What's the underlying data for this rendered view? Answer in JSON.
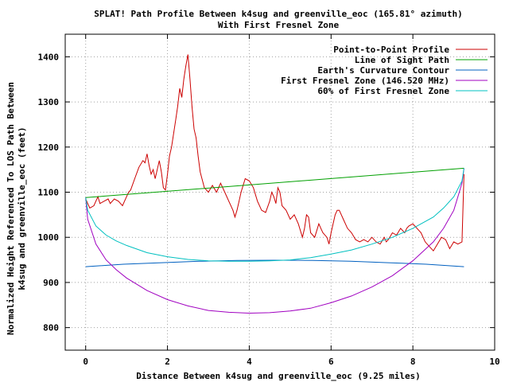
{
  "chart_data": {
    "type": "line",
    "title": "SPLAT! Path Profile Between k4sug and greenville_eoc (165.81° azimuth)",
    "subtitle": "With First Fresnel Zone",
    "xlabel": "Distance Between k4sug and greenville_eoc (9.25 miles)",
    "ylabel_line1": "Normalized Height Referenced To LOS Path Between",
    "ylabel_line2": "k4sug and greenville_eoc (feet)",
    "xlim": [
      -0.5,
      10
    ],
    "ylim": [
      750,
      1450
    ],
    "x_ticks": [
      0,
      2,
      4,
      6,
      8,
      10
    ],
    "y_ticks": [
      800,
      900,
      1000,
      1100,
      1200,
      1300,
      1400
    ],
    "grid": true,
    "legend_position": "top-right",
    "series": [
      {
        "name": "Point-to-Point Profile",
        "color": "#cc0000",
        "points": [
          [
            0,
            1085
          ],
          [
            0.1,
            1065
          ],
          [
            0.2,
            1070
          ],
          [
            0.3,
            1090
          ],
          [
            0.35,
            1075
          ],
          [
            0.45,
            1080
          ],
          [
            0.55,
            1085
          ],
          [
            0.6,
            1075
          ],
          [
            0.7,
            1085
          ],
          [
            0.8,
            1080
          ],
          [
            0.9,
            1070
          ],
          [
            1.0,
            1090
          ],
          [
            1.05,
            1100
          ],
          [
            1.1,
            1105
          ],
          [
            1.2,
            1130
          ],
          [
            1.3,
            1155
          ],
          [
            1.4,
            1170
          ],
          [
            1.45,
            1165
          ],
          [
            1.5,
            1185
          ],
          [
            1.55,
            1160
          ],
          [
            1.6,
            1140
          ],
          [
            1.65,
            1150
          ],
          [
            1.7,
            1130
          ],
          [
            1.8,
            1170
          ],
          [
            1.85,
            1145
          ],
          [
            1.9,
            1110
          ],
          [
            1.95,
            1105
          ],
          [
            2.0,
            1140
          ],
          [
            2.05,
            1180
          ],
          [
            2.1,
            1200
          ],
          [
            2.15,
            1230
          ],
          [
            2.2,
            1260
          ],
          [
            2.25,
            1290
          ],
          [
            2.3,
            1330
          ],
          [
            2.35,
            1310
          ],
          [
            2.4,
            1350
          ],
          [
            2.45,
            1380
          ],
          [
            2.5,
            1405
          ],
          [
            2.55,
            1350
          ],
          [
            2.6,
            1290
          ],
          [
            2.65,
            1240
          ],
          [
            2.7,
            1220
          ],
          [
            2.75,
            1180
          ],
          [
            2.8,
            1145
          ],
          [
            2.9,
            1110
          ],
          [
            3.0,
            1100
          ],
          [
            3.1,
            1115
          ],
          [
            3.2,
            1100
          ],
          [
            3.3,
            1120
          ],
          [
            3.4,
            1100
          ],
          [
            3.5,
            1080
          ],
          [
            3.6,
            1060
          ],
          [
            3.65,
            1045
          ],
          [
            3.7,
            1060
          ],
          [
            3.75,
            1080
          ],
          [
            3.8,
            1100
          ],
          [
            3.9,
            1130
          ],
          [
            4.0,
            1125
          ],
          [
            4.1,
            1110
          ],
          [
            4.2,
            1080
          ],
          [
            4.3,
            1060
          ],
          [
            4.4,
            1055
          ],
          [
            4.5,
            1080
          ],
          [
            4.55,
            1100
          ],
          [
            4.6,
            1090
          ],
          [
            4.65,
            1075
          ],
          [
            4.7,
            1110
          ],
          [
            4.75,
            1100
          ],
          [
            4.8,
            1070
          ],
          [
            4.9,
            1060
          ],
          [
            5.0,
            1040
          ],
          [
            5.1,
            1050
          ],
          [
            5.2,
            1030
          ],
          [
            5.3,
            1000
          ],
          [
            5.35,
            1020
          ],
          [
            5.4,
            1050
          ],
          [
            5.45,
            1045
          ],
          [
            5.5,
            1010
          ],
          [
            5.6,
            1000
          ],
          [
            5.7,
            1030
          ],
          [
            5.75,
            1020
          ],
          [
            5.8,
            1010
          ],
          [
            5.9,
            1000
          ],
          [
            5.95,
            985
          ],
          [
            6.0,
            1010
          ],
          [
            6.1,
            1050
          ],
          [
            6.15,
            1060
          ],
          [
            6.2,
            1060
          ],
          [
            6.3,
            1040
          ],
          [
            6.4,
            1020
          ],
          [
            6.5,
            1010
          ],
          [
            6.6,
            995
          ],
          [
            6.7,
            990
          ],
          [
            6.8,
            995
          ],
          [
            6.9,
            990
          ],
          [
            7.0,
            1000
          ],
          [
            7.1,
            990
          ],
          [
            7.2,
            985
          ],
          [
            7.3,
            1000
          ],
          [
            7.35,
            990
          ],
          [
            7.4,
            995
          ],
          [
            7.5,
            1010
          ],
          [
            7.6,
            1005
          ],
          [
            7.7,
            1020
          ],
          [
            7.8,
            1010
          ],
          [
            7.85,
            1020
          ],
          [
            7.9,
            1025
          ],
          [
            8.0,
            1030
          ],
          [
            8.05,
            1025
          ],
          [
            8.1,
            1020
          ],
          [
            8.2,
            1010
          ],
          [
            8.3,
            990
          ],
          [
            8.4,
            980
          ],
          [
            8.5,
            970
          ],
          [
            8.6,
            985
          ],
          [
            8.7,
            1000
          ],
          [
            8.8,
            995
          ],
          [
            8.9,
            975
          ],
          [
            9.0,
            990
          ],
          [
            9.1,
            985
          ],
          [
            9.2,
            990
          ],
          [
            9.25,
            1140
          ]
        ]
      },
      {
        "name": "Line of Sight Path",
        "color": "#00a000",
        "points": [
          [
            0,
            1088
          ],
          [
            9.25,
            1153
          ]
        ]
      },
      {
        "name": "Earth's Curvature Contour",
        "color": "#0060c0",
        "points": [
          [
            0,
            935
          ],
          [
            0.9257,
            940.5
          ],
          [
            1.85,
            943.8
          ],
          [
            2.775,
            946.9
          ],
          [
            3.7,
            948.9
          ],
          [
            4.625,
            949.3
          ],
          [
            5.55,
            948.9
          ],
          [
            6.475,
            946.9
          ],
          [
            7.4,
            943.8
          ],
          [
            8.325,
            940.5
          ],
          [
            9.25,
            935
          ]
        ]
      },
      {
        "name": "First Fresnel Zone (146.520 MHz)",
        "color": "#a000c0",
        "points": [
          [
            0,
            1088
          ],
          [
            0.05,
            1040
          ],
          [
            0.25,
            985
          ],
          [
            0.5,
            950
          ],
          [
            0.75,
            928
          ],
          [
            1.0,
            910
          ],
          [
            1.5,
            882
          ],
          [
            2.0,
            862
          ],
          [
            2.5,
            848
          ],
          [
            3.0,
            838
          ],
          [
            3.5,
            834
          ],
          [
            4.0,
            832
          ],
          [
            4.5,
            833
          ],
          [
            5.0,
            837
          ],
          [
            5.5,
            843
          ],
          [
            6.0,
            855
          ],
          [
            6.5,
            870
          ],
          [
            7.0,
            890
          ],
          [
            7.5,
            915
          ],
          [
            8.0,
            948
          ],
          [
            8.5,
            990
          ],
          [
            8.75,
            1020
          ],
          [
            9.0,
            1060
          ],
          [
            9.2,
            1120
          ],
          [
            9.25,
            1153
          ]
        ]
      },
      {
        "name": "60% of First Fresnel Zone",
        "color": "#00c0c0",
        "points": [
          [
            0,
            1088
          ],
          [
            0.05,
            1060
          ],
          [
            0.25,
            1025
          ],
          [
            0.5,
            1005
          ],
          [
            0.75,
            992
          ],
          [
            1.0,
            982
          ],
          [
            1.5,
            966
          ],
          [
            2.0,
            957
          ],
          [
            2.5,
            951
          ],
          [
            3.0,
            948
          ],
          [
            3.5,
            947
          ],
          [
            4.0,
            947
          ],
          [
            4.5,
            948
          ],
          [
            5.0,
            950
          ],
          [
            5.5,
            955
          ],
          [
            6.0,
            963
          ],
          [
            6.5,
            972
          ],
          [
            7.0,
            985
          ],
          [
            7.5,
            1000
          ],
          [
            8.0,
            1020
          ],
          [
            8.5,
            1045
          ],
          [
            8.75,
            1065
          ],
          [
            9.0,
            1090
          ],
          [
            9.2,
            1125
          ],
          [
            9.25,
            1153
          ]
        ]
      }
    ]
  }
}
